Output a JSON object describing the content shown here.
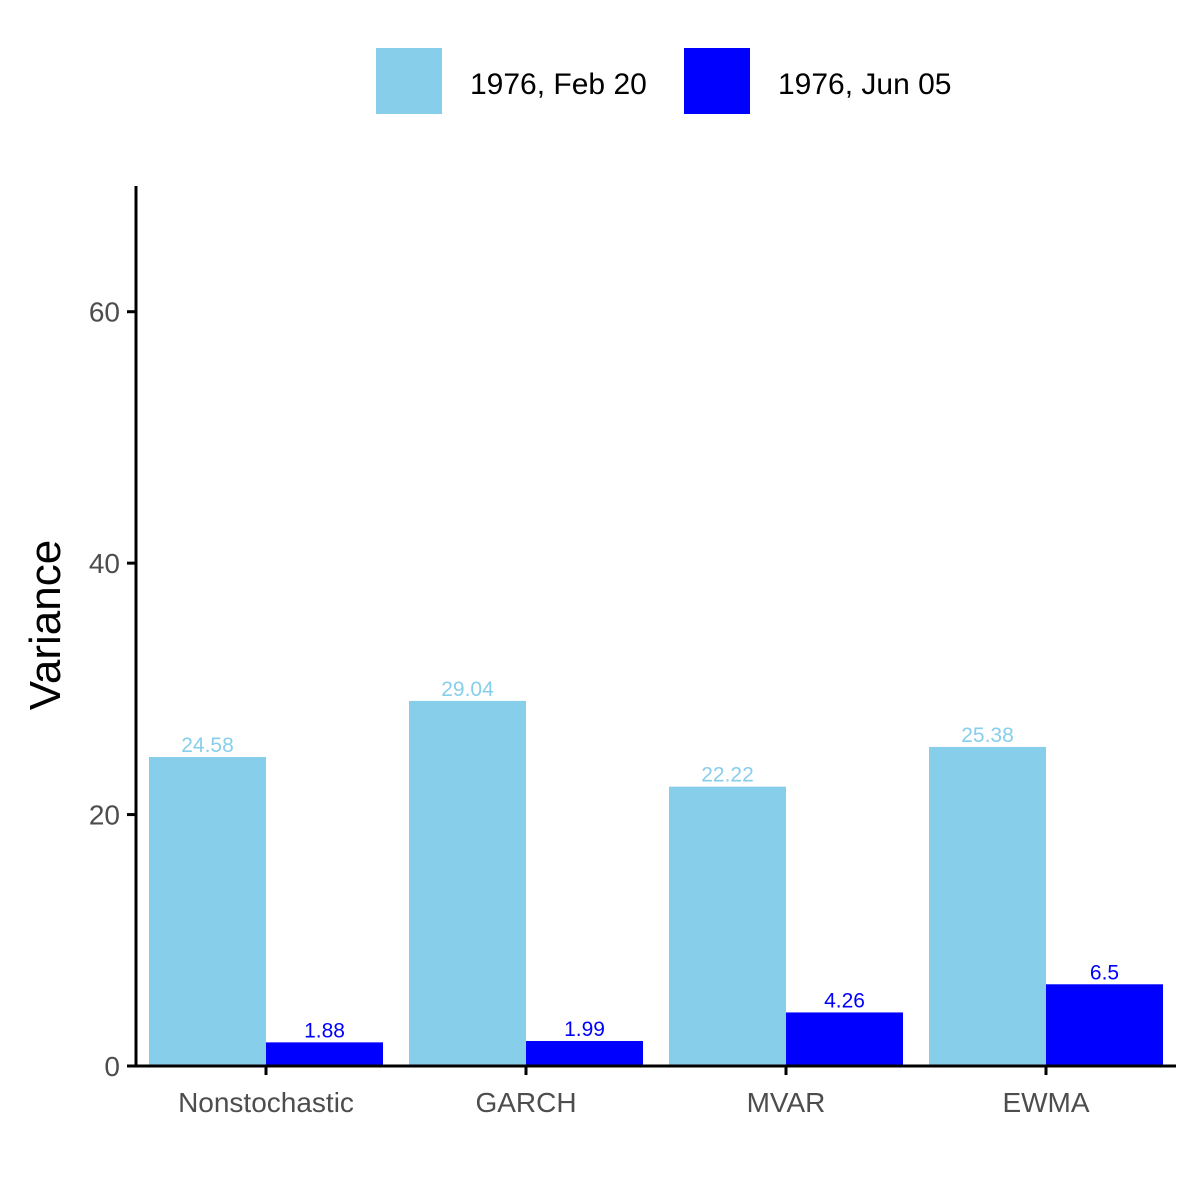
{
  "chart_data": {
    "type": "bar",
    "title": "",
    "xlabel": "",
    "ylabel": "Variance",
    "ylim": [
      0,
      70
    ],
    "yticks": [
      0,
      20,
      40,
      60
    ],
    "grid": false,
    "legend_position": "top",
    "categories": [
      "Nonstochastic",
      "GARCH",
      "MVAR",
      "EWMA"
    ],
    "series": [
      {
        "name": "1976, Feb 20",
        "color": "#87ceeb",
        "values": [
          24.58,
          29.04,
          22.22,
          25.38
        ],
        "labels": [
          "24.58",
          "29.04",
          "22.22",
          "25.38"
        ]
      },
      {
        "name": "1976, Jun 05",
        "color": "#0000ff",
        "values": [
          1.88,
          1.99,
          4.26,
          6.5
        ],
        "labels": [
          "1.88",
          "1.99",
          "4.26",
          "6.5"
        ]
      }
    ]
  }
}
